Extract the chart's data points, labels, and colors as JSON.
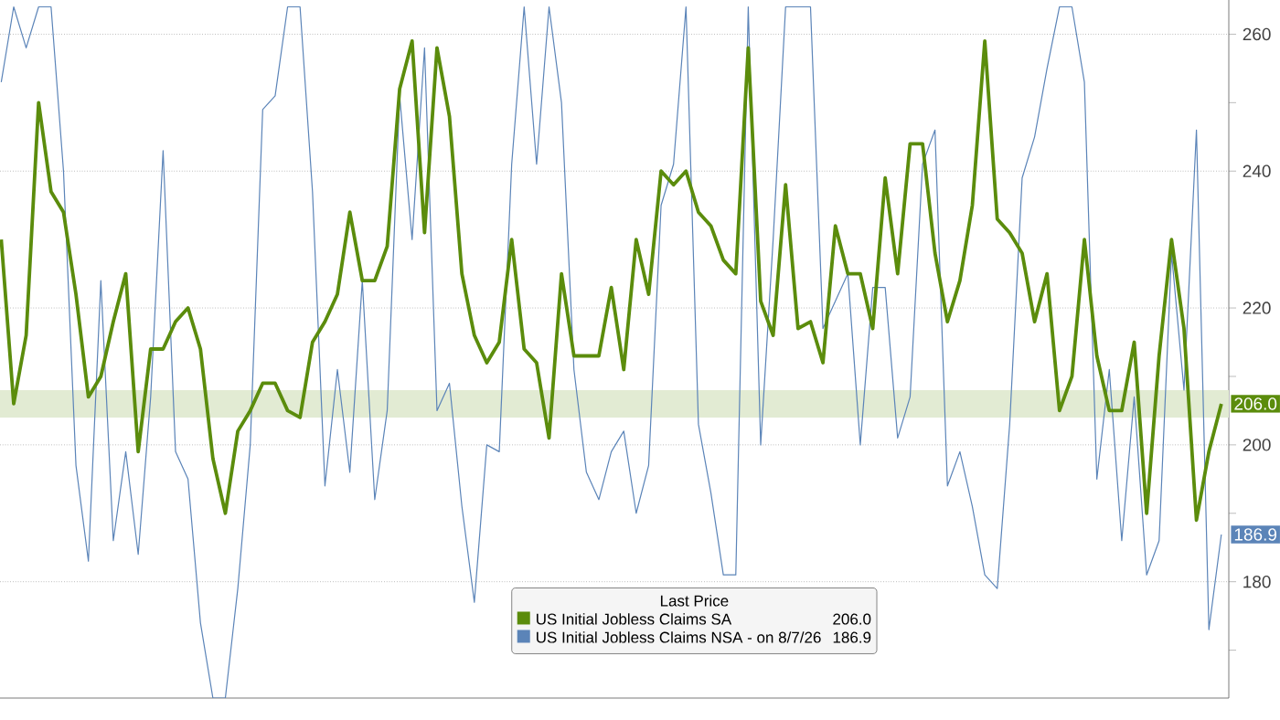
{
  "chart_data": {
    "type": "line",
    "legend_title": "Last Price",
    "legend": "bottom",
    "grid": "y",
    "tick_labels": "y",
    "categories": [
      null,
      null,
      null,
      null,
      null,
      null,
      null,
      null,
      null,
      null,
      null,
      null,
      null,
      null,
      null,
      null,
      null,
      null,
      null,
      null,
      null,
      null,
      null,
      null,
      null,
      null,
      null,
      null,
      null,
      null,
      null,
      null,
      null,
      null,
      null,
      null,
      null,
      null,
      null,
      null,
      null,
      null,
      null,
      null,
      null,
      null,
      null,
      null,
      null,
      null,
      null,
      null,
      null,
      null,
      null,
      null,
      null,
      null,
      null,
      null,
      null,
      null,
      null,
      null,
      null,
      null,
      null,
      null,
      null,
      null,
      null,
      null,
      null,
      null,
      null,
      null,
      null,
      null,
      null,
      null,
      null,
      null,
      null,
      null,
      null,
      null,
      null,
      null,
      null,
      null,
      null,
      null,
      null,
      null,
      null,
      null,
      null,
      null,
      null
    ],
    "ylim": [
      163,
      265
    ],
    "yticks": [
      {
        "value": 170,
        "label": null
      },
      180,
      {
        "value": 190,
        "label": null
      },
      200,
      {
        "value": 210,
        "label": null
      },
      220,
      240,
      {
        "value": 250,
        "label": null
      },
      260
    ],
    "bands": [
      {
        "axis": "y",
        "from": 204,
        "to": 208,
        "color": "#e2ebd3"
      }
    ],
    "series": [
      {
        "name": "US Initial Jobless Claims SA",
        "color": "#5b8c0c",
        "values": [
          230,
          206,
          216,
          250,
          237,
          234,
          222,
          207,
          210,
          218,
          225,
          199,
          214,
          214,
          218,
          220,
          214,
          198,
          190,
          202,
          205,
          209,
          209,
          205,
          204,
          215,
          218,
          222,
          234,
          224,
          224,
          229,
          252,
          259,
          231,
          258,
          248,
          225,
          216,
          212,
          215,
          230,
          214,
          212,
          201,
          225,
          213,
          213,
          213,
          223,
          211,
          230,
          222,
          240,
          238,
          240,
          234,
          232,
          227,
          225,
          258,
          221,
          216,
          238,
          217,
          218,
          212,
          232,
          225,
          225,
          217,
          239,
          225,
          244,
          244,
          228,
          218,
          224,
          235,
          259,
          233,
          231,
          228,
          218,
          225,
          205,
          210,
          230,
          213,
          205,
          205,
          215,
          190,
          213,
          230,
          217,
          189,
          199,
          206.0
        ],
        "value_labels": [
          null,
          null,
          null,
          null,
          null,
          null,
          null,
          null,
          null,
          null,
          null,
          null,
          null,
          null,
          null,
          null,
          null,
          null,
          null,
          null,
          null,
          null,
          null,
          null,
          null,
          null,
          null,
          null,
          null,
          null,
          null,
          null,
          null,
          null,
          null,
          null,
          null,
          null,
          null,
          null,
          null,
          null,
          null,
          null,
          null,
          null,
          null,
          null,
          null,
          null,
          null,
          null,
          null,
          null,
          null,
          null,
          null,
          null,
          null,
          null,
          null,
          null,
          null,
          null,
          null,
          null,
          null,
          null,
          null,
          null,
          null,
          null,
          null,
          null,
          null,
          null,
          null,
          null,
          null,
          null,
          null,
          null,
          null,
          null,
          null,
          null,
          null,
          null,
          null,
          null,
          null,
          null,
          null,
          null,
          null,
          null,
          null,
          null,
          "206.0"
        ]
      },
      {
        "name": "US Initial Jobless Claims NSA - on 8/7/26",
        "color": "#5b84b8",
        "values": [
          253,
          264,
          258,
          264,
          264,
          240,
          197,
          183,
          224,
          186,
          199,
          184,
          207,
          243,
          199,
          195,
          174,
          163,
          163,
          179,
          200,
          249,
          251,
          264,
          264,
          237,
          194,
          211,
          196,
          224,
          192,
          205,
          251,
          230,
          258,
          205,
          209,
          191,
          177,
          200,
          199,
          241,
          264,
          241,
          264,
          250,
          211,
          196,
          192,
          199,
          202,
          190,
          197,
          235,
          241,
          264,
          203,
          193,
          181,
          181,
          264,
          200,
          230,
          264,
          264,
          264,
          217,
          221,
          225,
          200,
          223,
          223,
          201,
          207,
          241,
          246,
          194,
          199,
          191,
          181,
          179,
          203,
          239,
          245,
          255,
          264,
          264,
          253,
          195,
          211,
          186,
          207,
          181,
          186,
          228,
          208,
          246,
          173,
          186.9
        ],
        "value_labels": [
          null,
          null,
          null,
          null,
          null,
          null,
          null,
          null,
          null,
          null,
          null,
          null,
          null,
          null,
          null,
          null,
          null,
          null,
          null,
          null,
          null,
          null,
          null,
          null,
          null,
          null,
          null,
          null,
          null,
          null,
          null,
          null,
          null,
          null,
          null,
          null,
          null,
          null,
          null,
          null,
          null,
          null,
          null,
          null,
          null,
          null,
          null,
          null,
          null,
          null,
          null,
          null,
          null,
          null,
          null,
          null,
          null,
          null,
          null,
          null,
          null,
          null,
          null,
          null,
          null,
          null,
          null,
          null,
          null,
          null,
          null,
          null,
          null,
          null,
          null,
          null,
          null,
          null,
          null,
          null,
          null,
          null,
          null,
          null,
          null,
          null,
          null,
          null,
          null,
          null,
          null,
          null,
          null,
          null,
          null,
          null,
          null,
          null,
          "186.9"
        ]
      }
    ]
  }
}
